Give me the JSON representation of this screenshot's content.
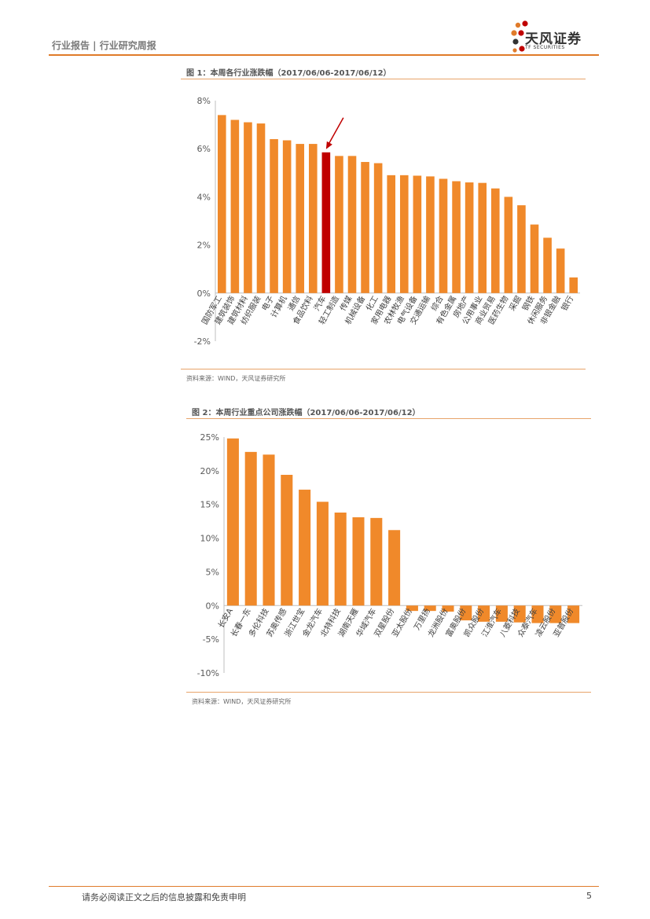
{
  "header": {
    "breadcrumb": "行业报告 | 行业研究周报",
    "logo_text": "天风证券",
    "logo_sub": "TF SECURITIES"
  },
  "figure1": {
    "title": "图 1：本周各行业涨跌幅（2017/06/06-2017/06/12）",
    "source": "资料来源：WIND，天风证券研究所"
  },
  "figure2": {
    "title": "图 2：本周行业重点公司涨跌幅（2017/06/06-2017/06/12）",
    "source": "资料来源：WIND，天风证券研究所"
  },
  "footer": {
    "disclaimer": "请务必阅读正文之后的信息披露和免责申明",
    "page_number": "5"
  },
  "colors": {
    "accent": "#e07b2a",
    "bar": "#f0892a",
    "highlight": "#c00000",
    "arrow": "#c00000"
  },
  "chart_data": [
    {
      "type": "bar",
      "title": "本周各行业涨跌幅",
      "categories": [
        "国防军工",
        "建筑装饰",
        "建筑材料",
        "纺织服装",
        "电子",
        "计算机",
        "通信",
        "食品饮料",
        "汽车",
        "轻工制造",
        "传媒",
        "机械设备",
        "化工",
        "家用电器",
        "农林牧渔",
        "电气设备",
        "交通运输",
        "综合",
        "有色金属",
        "房地产",
        "公用事业",
        "商业贸易",
        "医药生物",
        "采掘",
        "钢铁",
        "休闲服务",
        "非银金融",
        "银行"
      ],
      "values": [
        7.4,
        7.2,
        7.1,
        7.05,
        6.4,
        6.35,
        6.2,
        6.2,
        5.85,
        5.7,
        5.7,
        5.45,
        5.4,
        4.9,
        4.9,
        4.88,
        4.85,
        4.75,
        4.65,
        4.6,
        4.58,
        4.35,
        4.0,
        3.65,
        2.85,
        2.3,
        1.85,
        0.65
      ],
      "highlight_index": 8,
      "yticks": [
        "-2%",
        "0%",
        "2%",
        "4%",
        "6%",
        "8%"
      ],
      "ylim": [
        -2,
        8
      ]
    },
    {
      "type": "bar",
      "title": "本周行业重点公司涨跌幅",
      "categories": [
        "长安A",
        "长春一东",
        "多伦科技",
        "苏奥传感",
        "浙江世宝",
        "金龙汽车",
        "北特科技",
        "湖南天雁",
        "华域汽车",
        "双星股份",
        "亚太股份",
        "万里扬",
        "龙洲股份",
        "富奥股份",
        "凯众股份",
        "江淮汽车",
        "八菱科技",
        "众泰汽车",
        "凌云股份",
        "亚普股份"
      ],
      "values": [
        24.8,
        22.8,
        22.4,
        19.4,
        17.2,
        15.4,
        13.8,
        13.1,
        13.0,
        11.2,
        -0.8,
        -0.8,
        -0.9,
        -2.2,
        -2.4,
        -2.4,
        -2.5,
        -2.6,
        -2.6,
        -2.6
      ],
      "yticks": [
        "-10%",
        "-5%",
        "0%",
        "5%",
        "10%",
        "15%",
        "20%",
        "25%"
      ],
      "ylim": [
        -10,
        25
      ]
    }
  ]
}
